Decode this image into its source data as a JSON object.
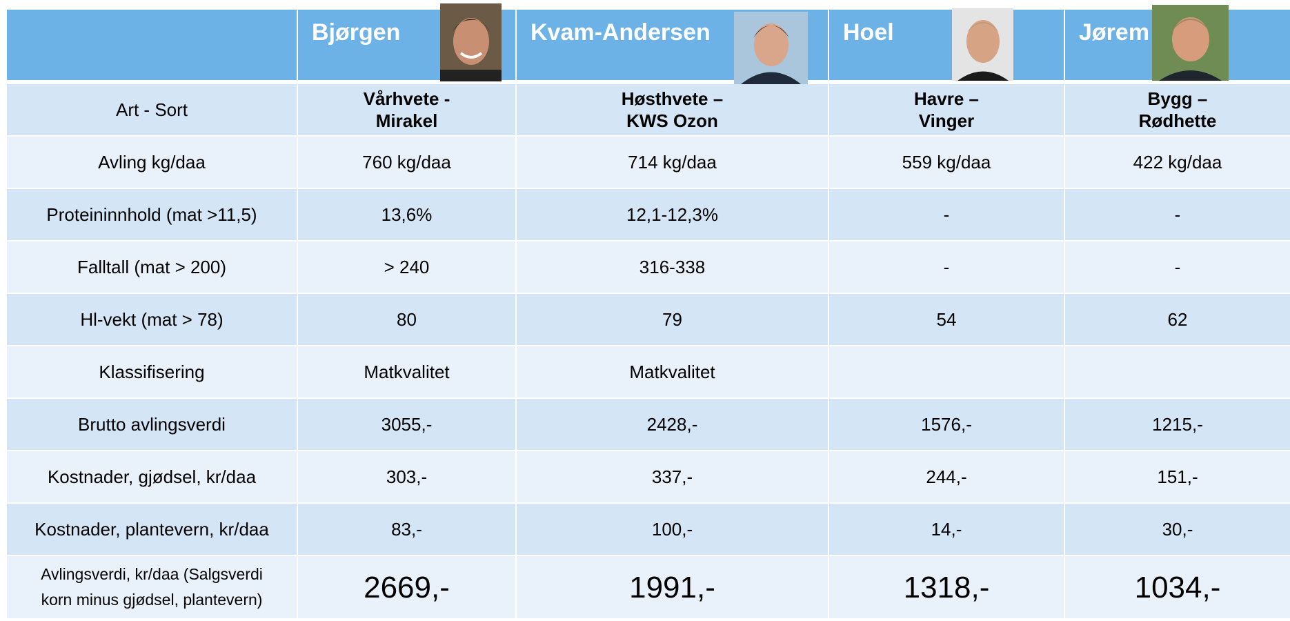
{
  "header": {
    "columns": [
      "Bjørgen",
      "Kvam-Andersen",
      "Hoel",
      "Jørem"
    ]
  },
  "rows": [
    {
      "label": "Art - Sort",
      "values": [
        [
          "Vårhvete -",
          "Mirakel"
        ],
        [
          "Høsthvete –",
          "KWS Ozon"
        ],
        [
          "Havre –",
          "Vinger"
        ],
        [
          "Bygg –",
          "Rødhette"
        ]
      ]
    },
    {
      "label": "Avling kg/daa",
      "values": [
        "760 kg/daa",
        "714 kg/daa",
        "559 kg/daa",
        "422 kg/daa"
      ]
    },
    {
      "label": "Proteininnhold (mat >11,5)",
      "values": [
        "13,6%",
        "12,1-12,3%",
        "-",
        "-"
      ]
    },
    {
      "label": "Falltall (mat > 200)",
      "values": [
        "> 240",
        "316-338",
        "-",
        "-"
      ]
    },
    {
      "label": "Hl-vekt (mat > 78)",
      "values": [
        "80",
        "79",
        "54",
        "62"
      ]
    },
    {
      "label": "Klassifisering",
      "values": [
        "Matkvalitet",
        "Matkvalitet",
        null,
        null
      ]
    },
    {
      "label": "Brutto avlingsverdi",
      "values": [
        "3055,-",
        "2428,-",
        "1576,-",
        "1215,-"
      ]
    },
    {
      "label": "Kostnader, gjødsel, kr/daa",
      "values": [
        "303,-",
        "337,-",
        "244,-",
        "151,-"
      ]
    },
    {
      "label": "Kostnader, plantevern, kr/daa",
      "values": [
        "83,-",
        "100,-",
        "14,-",
        "30,-"
      ]
    },
    {
      "label": [
        "Avlingsverdi, kr/daa (Salgsverdi",
        "korn minus gjødsel, plantevern)"
      ],
      "values": [
        "2669,-",
        "1991,-",
        "1318,-",
        "1034,-"
      ]
    }
  ]
}
